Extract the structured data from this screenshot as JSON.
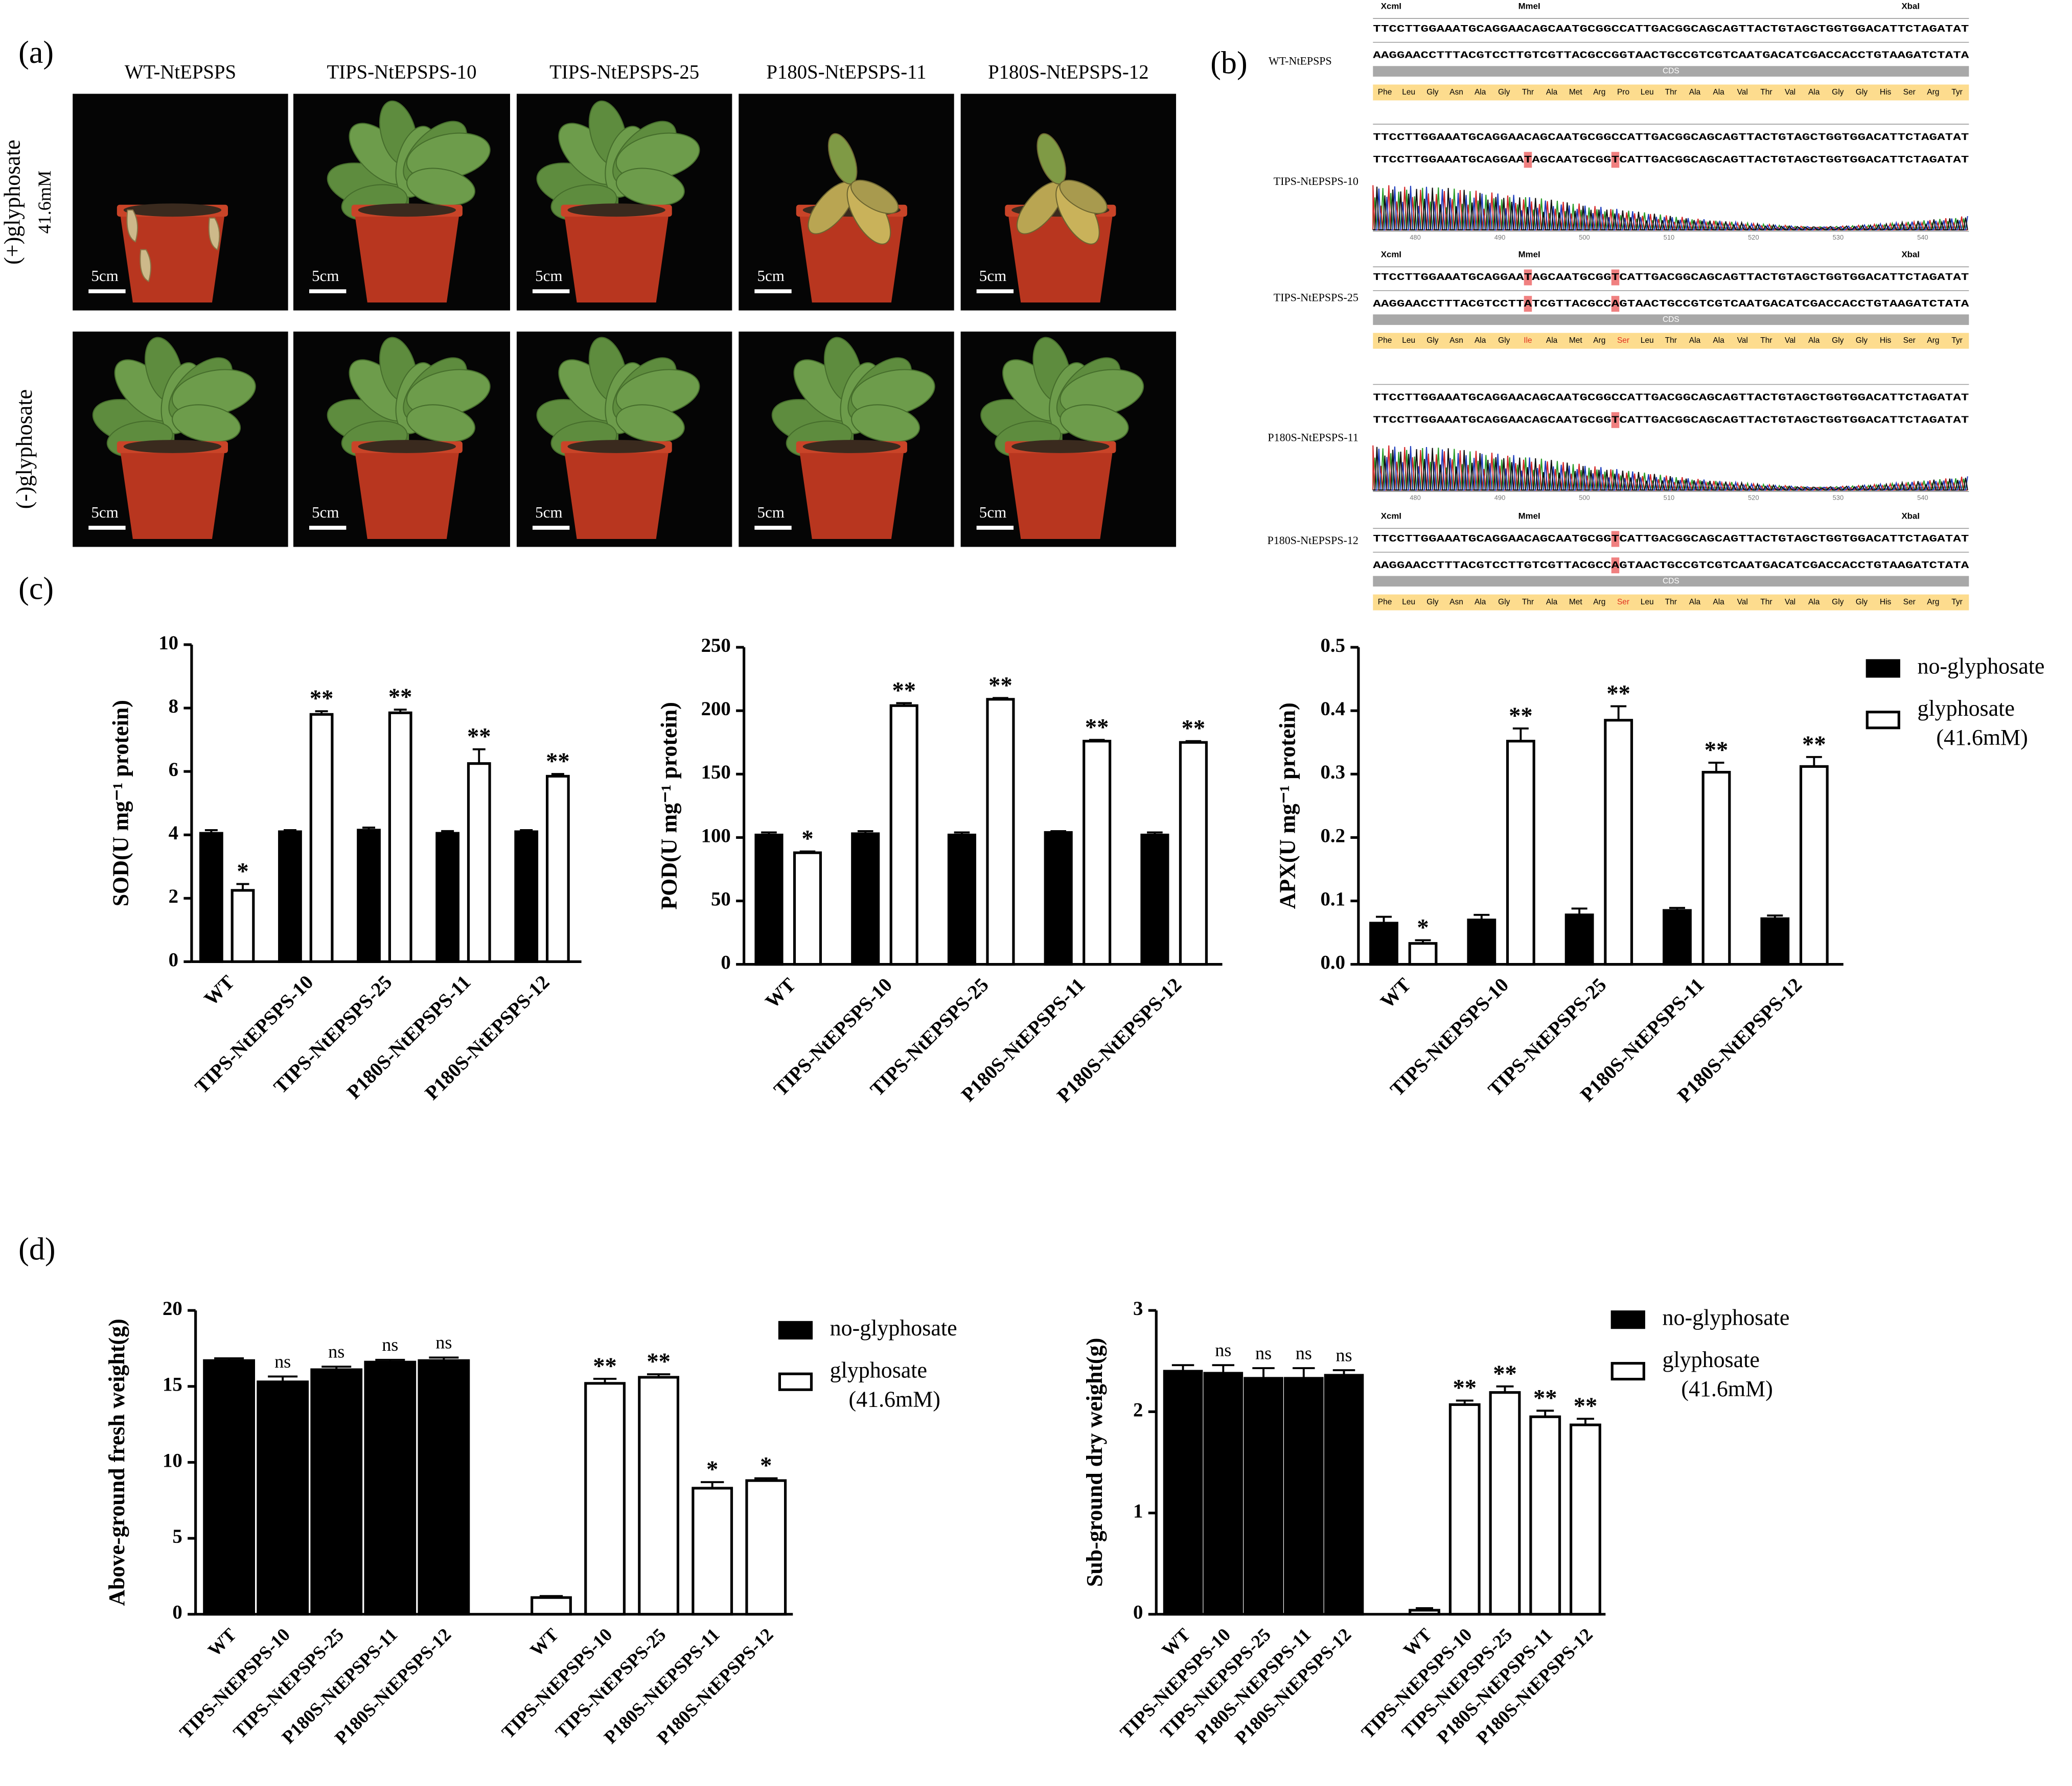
{
  "figure": {
    "panel_labels": [
      "(a)",
      "(b)",
      "(c)",
      "(d)"
    ],
    "photos": {
      "columns": [
        "WT-NtEPSPS",
        "TIPS-NtEPSPS-10",
        "TIPS-NtEPSPS-25",
        "P180S-NtEPSPS-11",
        "P180S-NtEPSPS-12"
      ],
      "rows": [
        {
          "label": "(+)glyphosate",
          "sublabel": "41.6mM"
        },
        {
          "label": "(-)glyphosate"
        }
      ],
      "scale_label": "5cm"
    },
    "sequence_panel": {
      "enzymes": [
        "XcmI",
        "MmeI",
        "XbaI"
      ],
      "cds_label": "CDS",
      "chromatogram_ticks": [
        480,
        490,
        500,
        510,
        520,
        530,
        540
      ],
      "samples": [
        {
          "name": "WT-NtEPSPS",
          "kind": "map",
          "sequence": "TTCCTTGGAAATGCAGGAACAGCAATGCGGCCATTGACGGCAGCAGTTACTGTAGCTGGTGGACATTCTAGATAT",
          "complement": "AAGGAACCTTTACGTCCTTGTCGTTACGCCGGTAACTGCCGTCGTCAATGACATCGACCACCTGTAAGATCTATA",
          "amino_acids": [
            "Phe",
            "Leu",
            "Gly",
            "Asn",
            "Ala",
            "Gly",
            "Thr",
            "Ala",
            "Met",
            "Arg",
            "Pro",
            "Leu",
            "Thr",
            "Ala",
            "Ala",
            "Val",
            "Thr",
            "Val",
            "Ala",
            "Gly",
            "Gly",
            "His",
            "Ser",
            "Arg",
            "Tyr"
          ]
        },
        {
          "name": "TIPS-NtEPSPS-10",
          "kind": "trace",
          "reference": "TTCCTTGGAAATGCAGGAACAGCAATGCGGCCATTGACGGCAGCAGTTACTGTAGCTGGTGGACATTCTAGATAT",
          "read": "TTCCTTGGAAATGCAGGAATAGCAATGCGGTCATTGACGGCAGCAGTTACTGTAGCTGGTGGACATTCTAGATAT"
        },
        {
          "name": "TIPS-NtEPSPS-25",
          "kind": "map",
          "sequence": "TTCCTTGGAAATGCAGGAATAGCAATGCGGTCATTGACGGCAGCAGTTACTGTAGCTGGTGGACATTCTAGATAT",
          "complement": "AAGGAACCTTTACGTCCTTATCGTTACGCCAGTAACTGCCGTCGTCAATGACATCGACCACCTGTAAGATCTATA",
          "amino_acids": [
            "Phe",
            "Leu",
            "Gly",
            "Asn",
            "Ala",
            "Gly",
            "Ile",
            "Ala",
            "Met",
            "Arg",
            "Ser",
            "Leu",
            "Thr",
            "Ala",
            "Ala",
            "Val",
            "Thr",
            "Val",
            "Ala",
            "Gly",
            "Gly",
            "His",
            "Ser",
            "Arg",
            "Tyr"
          ]
        },
        {
          "name": "P180S-NtEPSPS-11",
          "kind": "trace",
          "reference": "TTCCTTGGAAATGCAGGAACAGCAATGCGGCCATTGACGGCAGCAGTTACTGTAGCTGGTGGACATTCTAGATAT",
          "read": "TTCCTTGGAAATGCAGGAACAGCAATGCGGTCATTGACGGCAGCAGTTACTGTAGCTGGTGGACATTCTAGATAT"
        },
        {
          "name": "P180S-NtEPSPS-12",
          "kind": "map",
          "sequence": "TTCCTTGGAAATGCAGGAACAGCAATGCGGTCATTGACGGCAGCAGTTACTGTAGCTGGTGGACATTCTAGATAT",
          "complement": "AAGGAACCTTTACGTCCTTGTCGTTACGCCAGTAACTGCCGTCGTCAATGACATCGACCACCTGTAAGATCTATA",
          "amino_acids": [
            "Phe",
            "Leu",
            "Gly",
            "Asn",
            "Ala",
            "Gly",
            "Thr",
            "Ala",
            "Met",
            "Arg",
            "Ser",
            "Leu",
            "Thr",
            "Ala",
            "Ala",
            "Val",
            "Thr",
            "Val",
            "Ala",
            "Gly",
            "Gly",
            "His",
            "Ser",
            "Arg",
            "Tyr"
          ]
        }
      ]
    }
  },
  "chart_data": [
    {
      "type": "bar",
      "ylabel": "SOD(U mg⁻¹ protein)",
      "grouped": true,
      "legend": "none",
      "grid": false,
      "categories": [
        "WT",
        "TIPS-NtEPSPS-10",
        "TIPS-NtEPSPS-25",
        "P180S-NtEPSPS-11",
        "P180S-NtEPSPS-12"
      ],
      "ylim": [
        0,
        10
      ],
      "yticks": [
        0,
        2,
        4,
        6,
        8,
        10
      ],
      "series": [
        {
          "name": "no-glyphosate",
          "color": "#000000",
          "values": [
            4.05,
            4.1,
            4.15,
            4.05,
            4.1
          ],
          "errors": [
            0.1,
            0.05,
            0.08,
            0.07,
            0.05
          ],
          "annotations": [
            null,
            null,
            null,
            null,
            null
          ]
        },
        {
          "name": "glyphosate (41.6mM)",
          "color": "#ffffff",
          "values": [
            2.25,
            7.8,
            7.85,
            6.25,
            5.85
          ],
          "errors": [
            0.2,
            0.1,
            0.1,
            0.45,
            0.07
          ],
          "annotations": [
            "*",
            "**",
            "**",
            "**",
            "**"
          ]
        }
      ]
    },
    {
      "type": "bar",
      "ylabel": "POD(U mg⁻¹ protein)",
      "grouped": true,
      "legend": "none",
      "grid": false,
      "categories": [
        "WT",
        "TIPS-NtEPSPS-10",
        "TIPS-NtEPSPS-25",
        "P180S-NtEPSPS-11",
        "P180S-NtEPSPS-12"
      ],
      "ylim": [
        0,
        250
      ],
      "yticks": [
        0,
        50,
        100,
        150,
        200,
        250
      ],
      "series": [
        {
          "name": "no-glyphosate",
          "color": "#000000",
          "values": [
            102,
            103,
            102,
            104,
            102
          ],
          "errors": [
            2,
            2,
            2,
            1,
            2
          ],
          "annotations": [
            null,
            null,
            null,
            null,
            null
          ]
        },
        {
          "name": "glyphosate (41.6mM)",
          "color": "#ffffff",
          "values": [
            88,
            204,
            209,
            176,
            175
          ],
          "errors": [
            1,
            2,
            1,
            1,
            1
          ],
          "annotations": [
            "*",
            "**",
            "**",
            "**",
            "**"
          ]
        }
      ]
    },
    {
      "type": "bar",
      "ylabel": "APX(U mg⁻¹ protein)",
      "grouped": true,
      "legend": "right",
      "grid": false,
      "categories": [
        "WT",
        "TIPS-NtEPSPS-10",
        "TIPS-NtEPSPS-25",
        "P180S-NtEPSPS-11",
        "P180S-NtEPSPS-12"
      ],
      "ylim": [
        0,
        0.5
      ],
      "yticks": [
        {
          "value": 0,
          "label": "0.0"
        },
        0.1,
        0.2,
        0.3,
        0.4,
        0.5
      ],
      "series": [
        {
          "name": "no-glyphosate",
          "color": "#000000",
          "values": [
            0.065,
            0.07,
            0.078,
            0.085,
            0.072
          ],
          "errors": [
            0.01,
            0.008,
            0.01,
            0.004,
            0.005
          ],
          "annotations": [
            null,
            null,
            null,
            null,
            null
          ]
        },
        {
          "name": "glyphosate (41.6mM)",
          "color": "#ffffff",
          "values": [
            0.033,
            0.352,
            0.385,
            0.303,
            0.312
          ],
          "errors": [
            0.005,
            0.02,
            0.022,
            0.015,
            0.015
          ],
          "annotations": [
            "*",
            "**",
            "**",
            "**",
            "**"
          ]
        }
      ]
    },
    {
      "type": "bar",
      "ylabel": "Above-ground fresh weight(g)",
      "grouped": false,
      "legend": "right",
      "grid": false,
      "categories": [
        "WT",
        "TIPS-NtEPSPS-10",
        "TIPS-NtEPSPS-25",
        "P180S-NtEPSPS-11",
        "P180S-NtEPSPS-12",
        null,
        "WT",
        "TIPS-NtEPSPS-10",
        "TIPS-NtEPSPS-25",
        "P180S-NtEPSPS-11",
        "P180S-NtEPSPS-12"
      ],
      "ylim": [
        0,
        20
      ],
      "yticks": [
        0,
        5,
        10,
        15,
        20
      ],
      "series": [
        {
          "name": "no-glyphosate",
          "color": "#000000",
          "values": [
            16.7,
            15.3,
            16.1,
            16.6,
            16.7,
            null,
            null,
            null,
            null,
            null,
            null
          ],
          "errors": [
            0.15,
            0.35,
            0.2,
            0.15,
            0.2,
            null,
            null,
            null,
            null,
            null,
            null
          ],
          "annotations": [
            null,
            "ns",
            "ns",
            "ns",
            "ns",
            null,
            null,
            null,
            null,
            null,
            null
          ]
        },
        {
          "name": "glyphosate (41.6mM)",
          "color": "#ffffff",
          "values": [
            null,
            null,
            null,
            null,
            null,
            null,
            1.1,
            15.2,
            15.6,
            8.3,
            8.8
          ],
          "errors": [
            null,
            null,
            null,
            null,
            null,
            null,
            0.1,
            0.3,
            0.2,
            0.4,
            0.15
          ],
          "annotations": [
            null,
            null,
            null,
            null,
            null,
            null,
            null,
            "**",
            "**",
            "*",
            "*"
          ]
        }
      ]
    },
    {
      "type": "bar",
      "ylabel": "Sub-ground dry weight(g)",
      "grouped": false,
      "legend": "right",
      "grid": false,
      "categories": [
        "WT",
        "TIPS-NtEPSPS-10",
        "TIPS-NtEPSPS-25",
        "P180S-NtEPSPS-11",
        "P180S-NtEPSPS-12",
        null,
        "WT",
        "TIPS-NtEPSPS-10",
        "TIPS-NtEPSPS-25",
        "P180S-NtEPSPS-11",
        "P180S-NtEPSPS-12"
      ],
      "ylim": [
        0,
        3
      ],
      "yticks": [
        0,
        1,
        2,
        3
      ],
      "series": [
        {
          "name": "no-glyphosate",
          "color": "#000000",
          "values": [
            2.4,
            2.38,
            2.33,
            2.33,
            2.36,
            null,
            null,
            null,
            null,
            null,
            null
          ],
          "errors": [
            0.06,
            0.08,
            0.1,
            0.1,
            0.05,
            null,
            null,
            null,
            null,
            null,
            null
          ],
          "annotations": [
            null,
            "ns",
            "ns",
            "ns",
            "ns",
            null,
            null,
            null,
            null,
            null,
            null
          ]
        },
        {
          "name": "glyphosate (41.6mM)",
          "color": "#ffffff",
          "values": [
            null,
            null,
            null,
            null,
            null,
            null,
            0.04,
            2.07,
            2.19,
            1.95,
            1.87
          ],
          "errors": [
            null,
            null,
            null,
            null,
            null,
            null,
            0.02,
            0.04,
            0.06,
            0.06,
            0.06
          ],
          "annotations": [
            null,
            null,
            null,
            null,
            null,
            null,
            null,
            "**",
            "**",
            "**",
            "**"
          ]
        }
      ]
    }
  ]
}
